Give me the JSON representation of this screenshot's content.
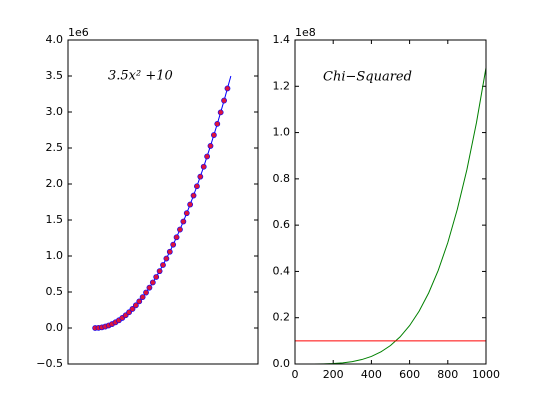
{
  "chart_data": [
    {
      "type": "line",
      "offset_label": "1e6",
      "annotation": "3.5x² +10",
      "xlim": [
        -200,
        1200
      ],
      "ylim": [
        -0.5,
        4.0
      ],
      "yticks": [
        {
          "value": -0.5,
          "label": "−0.5"
        },
        {
          "value": 0,
          "label": "0.0"
        },
        0.5,
        {
          "value": 1,
          "label": "1.0"
        },
        1.5,
        {
          "value": 2,
          "label": "2.0"
        },
        2.5,
        {
          "value": 3,
          "label": "3.0"
        },
        3.5,
        {
          "value": 4,
          "label": "4.0"
        }
      ],
      "series": [
        {
          "kind": "line",
          "color": "#0000ff",
          "x": [
            0,
            50,
            100,
            150,
            200,
            250,
            300,
            350,
            400,
            450,
            500,
            550,
            600,
            650,
            700,
            750,
            800,
            850,
            900,
            950,
            1000
          ],
          "values": [
            1e-05,
            0.00876,
            0.03501,
            0.07876,
            0.14001,
            0.21876,
            0.31501,
            0.42876,
            0.56001,
            0.70876,
            0.87501,
            1.05876,
            1.26001,
            1.47876,
            1.71501,
            1.96876,
            2.24001,
            2.52876,
            2.83501,
            3.15876,
            3.50001
          ]
        },
        {
          "kind": "scatter",
          "color": "#dc143c",
          "edge_color": "#0000ff",
          "x": [
            0,
            25,
            50,
            75,
            100,
            125,
            150,
            175,
            200,
            225,
            250,
            275,
            300,
            325,
            350,
            375,
            400,
            425,
            450,
            475,
            500,
            525,
            550,
            575,
            600,
            625,
            650,
            675,
            700,
            725,
            750,
            775,
            800,
            825,
            850,
            875,
            900,
            925,
            950,
            975
          ],
          "values": [
            1e-05,
            0.0021975,
            0.00876,
            0.0196975,
            0.03501,
            0.0546975,
            0.07876,
            0.1071975,
            0.14001,
            0.1771975,
            0.21876,
            0.2646975,
            0.31501,
            0.3696975,
            0.42876,
            0.4921975,
            0.56001,
            0.6321975,
            0.70876,
            0.7896975,
            0.87501,
            0.9646975,
            1.05876,
            1.1571975,
            1.26001,
            1.3671975,
            1.47876,
            1.5946975,
            1.71501,
            1.8396975,
            1.96876,
            2.1021975,
            2.24001,
            2.3821975,
            2.52876,
            2.6796975,
            2.83501,
            2.9946975,
            3.15876,
            3.3271975
          ]
        }
      ]
    },
    {
      "type": "line",
      "offset_label": "1e8",
      "annotation": "Chi−Squared",
      "xlim": [
        0,
        1000
      ],
      "ylim": [
        0,
        1.4
      ],
      "xticks": [
        0,
        200,
        400,
        600,
        800,
        1000
      ],
      "yticks": [
        {
          "value": 0,
          "label": "0.0"
        },
        0.2,
        0.4,
        0.6,
        0.8,
        {
          "value": 1,
          "label": "1.0"
        },
        1.2,
        1.4
      ],
      "series": [
        {
          "kind": "line",
          "color": "#008000",
          "x": [
            0,
            50,
            100,
            150,
            200,
            250,
            300,
            350,
            400,
            450,
            500,
            550,
            600,
            650,
            700,
            750,
            800,
            850,
            900,
            950,
            1000
          ],
          "values": [
            0,
            8e-06,
            0.000128,
            0.000648,
            0.002048,
            0.005,
            0.010368,
            0.019208,
            0.032768,
            0.052488,
            0.08,
            0.117128,
            0.165888,
            0.228488,
            0.307328,
            0.405,
            0.524288,
            0.669048,
            0.839808,
            1.042568,
            1.28
          ]
        },
        {
          "kind": "line",
          "color": "#ff0000",
          "x": [
            0,
            1000
          ],
          "values": [
            0.1,
            0.1
          ]
        }
      ]
    }
  ]
}
